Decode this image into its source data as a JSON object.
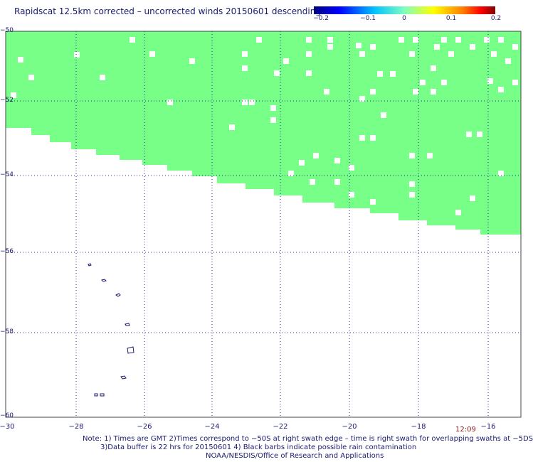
{
  "title": "Rapidscat 12.5km corrected – uncorrected winds 20150601 descending",
  "colorbar": {
    "labels": [
      "−0.2",
      "−0.1",
      "0",
      "0.1",
      "0.2"
    ],
    "colors": [
      "#00007f",
      "#0000ff",
      "#00bfff",
      "#7fffbf",
      "#ffff00",
      "#ff7f00",
      "#ff0000",
      "#7f0000"
    ]
  },
  "axes": {
    "x_labels": [
      "−30",
      "−28",
      "−26",
      "−24",
      "−22",
      "−20",
      "−18",
      "−16"
    ],
    "y_labels": [
      "−50",
      "−52",
      "−54",
      "−56",
      "−58",
      "−60"
    ]
  },
  "time_label": "12:09",
  "notes": [
    "Note: 1) Times are GMT 2)Times correspond to −50S at right swath edge – time is right swath for overlapping swaths at −5DS",
    "3)Data buffer is 22 hrs for 20150601 4) Black barbs indicate possible rain contamination",
    "NOAA/NESDIS/Office of Research and Applications"
  ],
  "colors": {
    "swath": "#77ff88",
    "text": "#1a1a6e",
    "grid": "#2a2aa0",
    "coast": "#1a1a6e",
    "time": "#8b1a1a"
  }
}
